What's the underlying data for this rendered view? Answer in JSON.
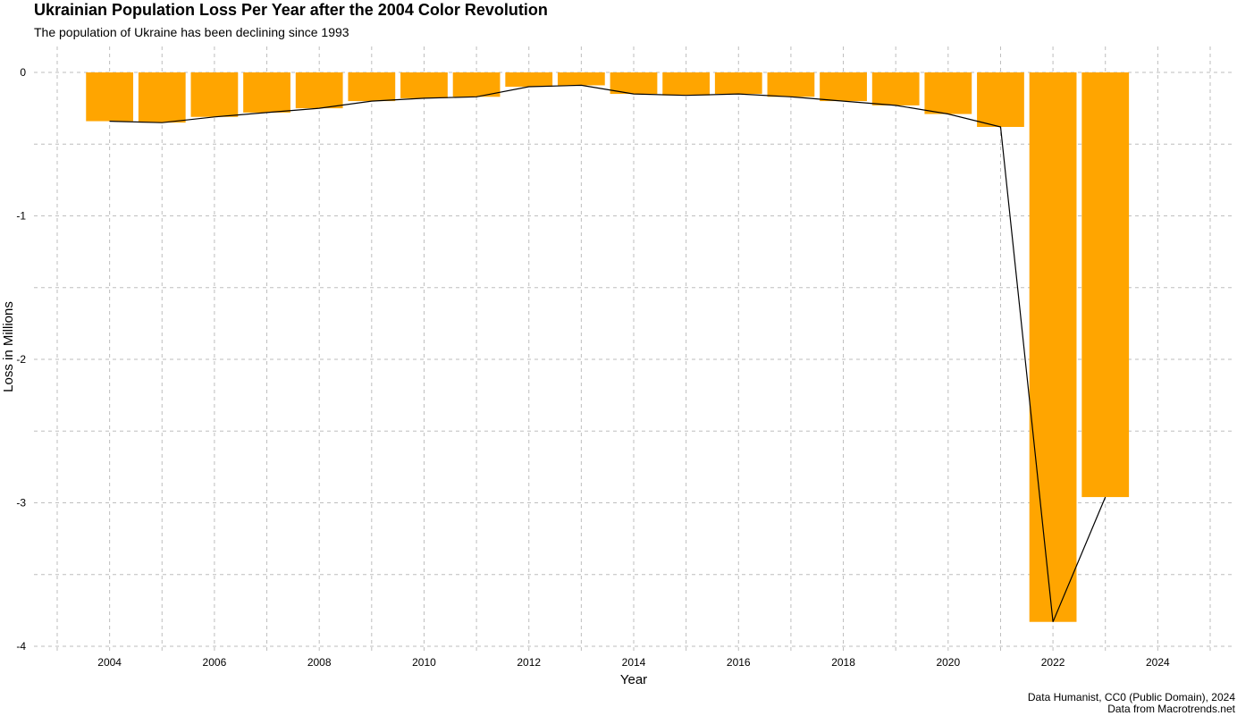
{
  "chart_data": {
    "type": "bar",
    "title": "Ukrainian Population Loss Per Year after the 2004 Color Revolution",
    "subtitle": "The population of Ukraine has been declining since 1993",
    "xlabel": "Year",
    "ylabel": "Loss in Millions",
    "caption_lines": [
      "Data Humanist, CC0 (Public Domain), 2024",
      "Data from Macrotrends.net"
    ],
    "x": [
      2004,
      2005,
      2006,
      2007,
      2008,
      2009,
      2010,
      2011,
      2012,
      2013,
      2014,
      2015,
      2016,
      2017,
      2018,
      2019,
      2020,
      2021,
      2022,
      2023
    ],
    "values": [
      -0.34,
      -0.35,
      -0.31,
      -0.28,
      -0.25,
      -0.2,
      -0.18,
      -0.17,
      -0.1,
      -0.09,
      -0.15,
      -0.16,
      -0.15,
      -0.17,
      -0.2,
      -0.23,
      -0.29,
      -0.38,
      -3.83,
      -2.96
    ],
    "bar_color": "#FFA500",
    "line_color": "#000000",
    "grid_color": "#BEBEBE",
    "xlim": [
      2003,
      2025
    ],
    "ylim": [
      -4,
      0
    ],
    "x_ticks": [
      2004,
      2006,
      2008,
      2010,
      2012,
      2014,
      2016,
      2018,
      2020,
      2022,
      2024
    ],
    "y_ticks": [
      0,
      -1,
      -2,
      -3,
      -4
    ],
    "grid": true,
    "grid_style": "dashed",
    "legend": "none"
  }
}
